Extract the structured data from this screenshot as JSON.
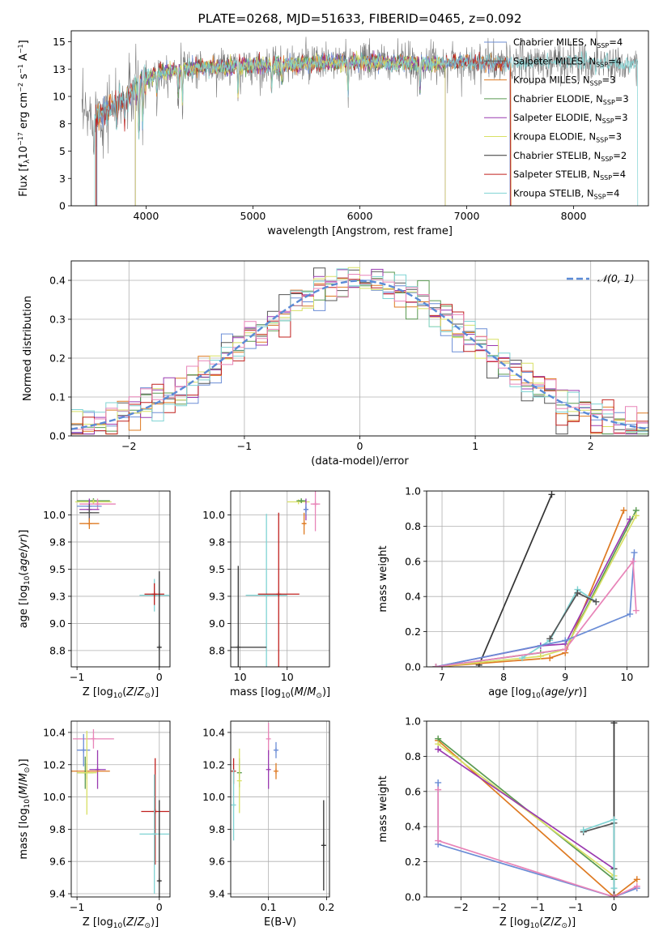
{
  "colors": {
    "chabrier_miles": "#6b8dd6",
    "salpeter_miles": "#555555",
    "kroupa_miles": "#de7a22",
    "chabrier_elodie": "#5a9a52",
    "salpeter_elodie": "#9a3ab0",
    "kroupa_elodie": "#d8e064",
    "chabrier_stelib": "#333333",
    "salpeter_stelib": "#c0201e",
    "kroupa_stelib": "#7fd3d3",
    "pink": "#e884b8",
    "normal_curve": "#5b8bd6"
  },
  "chart_data": [
    {
      "id": "spectrum",
      "type": "line",
      "title": "PLATE=0268, MJD=51633, FIBERID=0465, z=0.092",
      "xlabel": "wavelength [Angstrom, rest frame]",
      "ylabel_html": "Flux [f<tspan dy='3' font-size='9'>λ</tspan><tspan dy='-3'>10</tspan><tspan dy='-5' font-size='8'>−17</tspan><tspan dy='5'> erg cm</tspan><tspan dy='-5' font-size='8'>−2</tspan><tspan dy='5'> s</tspan><tspan dy='-5' font-size='8'>−1</tspan><tspan dy='5'> A</tspan><tspan dy='-5' font-size='8'>−1</tspan><tspan dy='5'>]</tspan>",
      "xlim": [
        3300,
        8700
      ],
      "ylim": [
        0,
        16
      ],
      "xticks": [
        4000,
        5000,
        6000,
        7000,
        8000
      ],
      "yticks": [
        0.0,
        2.5,
        5.0,
        7.5,
        10.0,
        12.5,
        15.0
      ],
      "legend_position": "right",
      "legend": [
        {
          "color_key": "chabrier_miles",
          "label": "Chabrier MILES, N",
          "sub": "SSP",
          "tail": "=4"
        },
        {
          "color_key": "salpeter_miles",
          "label": "Salpeter MILES, N",
          "sub": "SSP",
          "tail": "=4"
        },
        {
          "color_key": "kroupa_miles",
          "label": "Kroupa MILES, N",
          "sub": "SSP",
          "tail": "=3"
        },
        {
          "color_key": "chabrier_elodie",
          "label": "Chabrier ELODIE, N",
          "sub": "SSP",
          "tail": "=3"
        },
        {
          "color_key": "salpeter_elodie",
          "label": "Salpeter ELODIE, N",
          "sub": "SSP",
          "tail": "=3"
        },
        {
          "color_key": "kroupa_elodie",
          "label": "Kroupa ELODIE, N",
          "sub": "SSP",
          "tail": "=3"
        },
        {
          "color_key": "chabrier_stelib",
          "label": "Chabrier STELIB, N",
          "sub": "SSP",
          "tail": "=2"
        },
        {
          "color_key": "salpeter_stelib",
          "label": "Salpeter STELIB, N",
          "sub": "SSP",
          "tail": "=4"
        },
        {
          "color_key": "kroupa_stelib",
          "label": "Kroupa STELIB, N",
          "sub": "SSP",
          "tail": "=4"
        }
      ],
      "continuum": [
        [
          3400,
          8.0
        ],
        [
          3550,
          8.3
        ],
        [
          3700,
          9.2
        ],
        [
          3850,
          10.2
        ],
        [
          3950,
          11.2
        ],
        [
          4100,
          12.2
        ],
        [
          4400,
          12.6
        ],
        [
          5000,
          12.8
        ],
        [
          5500,
          13.0
        ],
        [
          6000,
          13.2
        ],
        [
          6500,
          13.0
        ],
        [
          7000,
          13.1
        ],
        [
          7500,
          13.0
        ],
        [
          8000,
          13.2
        ],
        [
          8500,
          13.0
        ]
      ],
      "absorptions": [
        [
          3727,
          3.0
        ],
        [
          3800,
          2.5
        ],
        [
          3934,
          6.0
        ],
        [
          3969,
          5.0
        ],
        [
          4101,
          2.5
        ],
        [
          4300,
          2.5
        ],
        [
          4340,
          3.5
        ],
        [
          4861,
          3.5
        ],
        [
          5175,
          3.0
        ],
        [
          5270,
          2.0
        ],
        [
          5890,
          4.0
        ],
        [
          6563,
          3.0
        ]
      ],
      "data_range": [
        3400,
        8600
      ],
      "models": [
        {
          "color_key": "salpeter_miles",
          "range": [
            3540,
            7410
          ]
        },
        {
          "color_key": "kroupa_miles",
          "range": [
            3535,
            7415
          ]
        },
        {
          "color_key": "chabrier_miles",
          "range": [
            3540,
            7405
          ]
        },
        {
          "color_key": "salpeter_stelib",
          "range": [
            3530,
            7410
          ]
        },
        {
          "color_key": "chabrier_elodie",
          "range": [
            3900,
            6800
          ]
        },
        {
          "color_key": "salpeter_elodie",
          "range": [
            3900,
            6800
          ]
        },
        {
          "color_key": "kroupa_elodie",
          "range": [
            3900,
            6800
          ]
        },
        {
          "color_key": "kroupa_stelib",
          "range": [
            3520,
            8600
          ]
        }
      ]
    },
    {
      "id": "residuals",
      "type": "line",
      "xlabel": "(data-model)/error",
      "ylabel": "Normed distribution",
      "xlim": [
        -2.5,
        2.5
      ],
      "ylim": [
        0,
        0.45
      ],
      "xticks": [
        -2,
        -1,
        0,
        1,
        2
      ],
      "yticks": [
        0.0,
        0.1,
        0.2,
        0.3,
        0.4
      ],
      "grid": true,
      "legend_position": "top-right",
      "legend_label": "𝒩(0, 1)",
      "bin_width": 0.1,
      "hist_color_keys": [
        "chabrier_miles",
        "salpeter_miles",
        "kroupa_miles",
        "chabrier_elodie",
        "salpeter_elodie",
        "kroupa_elodie",
        "salpeter_stelib",
        "kroupa_stelib",
        "pink"
      ]
    },
    {
      "id": "age_vs_z",
      "type": "scatter",
      "xlabel_html": "Z [log<tspan dy='3' font-size='9'>10</tspan><tspan dy='-3'>(</tspan><tspan font-style='italic'>Z</tspan>/<tspan font-style='italic'>Z</tspan><tspan dy='3' font-size='9'>⊙</tspan><tspan dy='-3'>)]</tspan>",
      "ylabel_html": "age  [log<tspan dy='3' font-size='9'>10</tspan><tspan dy='-3'>(</tspan><tspan font-style='italic'>age</tspan>/<tspan font-style='italic'>yr</tspan>)]",
      "xlim": [
        -1.07,
        0.13
      ],
      "ylim": [
        8.6,
        10.22
      ],
      "xticks": [
        -1,
        0
      ],
      "yticks": [
        8.75,
        9.0,
        9.25,
        9.5,
        9.75,
        10.0
      ],
      "grid": true,
      "points": [
        {
          "c": "chabrier_elodie",
          "x": -0.8,
          "y": 10.13,
          "xe": 0.2,
          "ye": 0.02
        },
        {
          "c": "kroupa_elodie",
          "x": -0.8,
          "y": 10.12,
          "xe": 0.22,
          "ye": 0.02
        },
        {
          "c": "pink",
          "x": -0.75,
          "y": 10.1,
          "xe": 0.22,
          "ye": 0.05
        },
        {
          "c": "chabrier_miles",
          "x": -0.85,
          "y": 10.08,
          "xe": 0.15,
          "ye": 0.06
        },
        {
          "c": "salpeter_elodie",
          "x": -0.85,
          "y": 10.05,
          "xe": 0.12,
          "ye": 0.1
        },
        {
          "c": "salpeter_miles",
          "x": -0.85,
          "y": 10.02,
          "xe": 0.12,
          "ye": 0.08
        },
        {
          "c": "kroupa_miles",
          "x": -0.85,
          "y": 9.92,
          "xe": 0.12,
          "ye": 0.05
        },
        {
          "c": "kroupa_stelib",
          "x": -0.06,
          "y": 9.26,
          "xe": 0.18,
          "ye": 0.15
        },
        {
          "c": "salpeter_stelib",
          "x": -0.06,
          "y": 9.27,
          "xe": 0.12,
          "ye": 0.1
        },
        {
          "c": "chabrier_stelib",
          "x": 0.0,
          "y": 8.78,
          "xe": 0.02,
          "ye": 0.7
        }
      ]
    },
    {
      "id": "age_vs_mass",
      "type": "scatter",
      "xlabel_html": "mass [log<tspan dy='3' font-size='9'>10</tspan><tspan dy='-3'>(</tspan><tspan font-style='italic'>M</tspan>/<tspan font-style='italic'>M</tspan><tspan dy='3' font-size='9'>⊙</tspan><tspan dy='-3'>)]</tspan>",
      "xlim": [
        9.4,
        10.45
      ],
      "ylim": [
        8.6,
        10.22
      ],
      "xticks": [
        9.5,
        10.0
      ],
      "yticks": [
        8.75,
        9.0,
        9.25,
        9.5,
        9.75,
        10.0
      ],
      "grid": true,
      "points": [
        {
          "c": "kroupa_elodie",
          "x": 10.12,
          "y": 10.12,
          "xe": 0.12,
          "ye": 0.02
        },
        {
          "c": "chabrier_elodie",
          "x": 10.15,
          "y": 10.13,
          "xe": 0.05,
          "ye": 0.02
        },
        {
          "c": "pink",
          "x": 10.3,
          "y": 10.1,
          "xe": 0.05,
          "ye": 0.25
        },
        {
          "c": "salpeter_elodie",
          "x": 10.2,
          "y": 10.05,
          "xe": 0.02,
          "ye": 0.1
        },
        {
          "c": "kroupa_miles",
          "x": 10.18,
          "y": 9.92,
          "xe": 0.02,
          "ye": 0.1
        },
        {
          "c": "chabrier_miles",
          "x": 10.2,
          "y": 10.05,
          "xe": 0.02,
          "ye": 0.05
        },
        {
          "c": "kroupa_stelib",
          "x": 9.78,
          "y": 9.26,
          "xe": 0.22,
          "ye": 0.75
        },
        {
          "c": "salpeter_stelib",
          "x": 9.91,
          "y": 9.27,
          "xe": 0.22,
          "ye": 0.75
        },
        {
          "c": "chabrier_stelib",
          "x": 9.48,
          "y": 8.78,
          "xe": 0.3,
          "ye": 0.75
        }
      ]
    },
    {
      "id": "weight_vs_age",
      "type": "line",
      "xlabel_html": "age  [log<tspan dy='3' font-size='9'>10</tspan><tspan dy='-3'>(</tspan><tspan font-style='italic'>age</tspan>/<tspan font-style='italic'>yr</tspan>)]",
      "ylabel": "mass weight",
      "xlim": [
        6.75,
        10.35
      ],
      "ylim": [
        0,
        1
      ],
      "xticks": [
        7,
        8,
        9,
        10
      ],
      "yticks": [
        0.0,
        0.2,
        0.4,
        0.6,
        0.8,
        1.0
      ],
      "grid": true,
      "series": [
        {
          "c": "chabrier_stelib",
          "x": [
            7.6,
            8.78
          ],
          "y": [
            0.01,
            0.98
          ]
        },
        {
          "c": "kroupa_miles",
          "x": [
            6.9,
            8.75,
            9.0,
            9.95
          ],
          "y": [
            0.0,
            0.05,
            0.08,
            0.89
          ]
        },
        {
          "c": "salpeter_elodie",
          "x": [
            6.9,
            8.6,
            9.0,
            10.05
          ],
          "y": [
            0.0,
            0.12,
            0.13,
            0.84
          ]
        },
        {
          "c": "chabrier_elodie",
          "x": [
            6.9,
            8.6,
            9.0,
            10.15
          ],
          "y": [
            0.0,
            0.08,
            0.1,
            0.89
          ]
        },
        {
          "c": "kroupa_elodie",
          "x": [
            6.9,
            8.6,
            9.0,
            10.15
          ],
          "y": [
            0.0,
            0.06,
            0.1,
            0.86
          ]
        },
        {
          "c": "kroupa_stelib",
          "x": [
            8.3,
            8.75,
            9.2,
            9.5
          ],
          "y": [
            0.05,
            0.15,
            0.44,
            0.37
          ]
        },
        {
          "c": "salpeter_miles",
          "x": [
            8.75,
            9.2,
            9.5
          ],
          "y": [
            0.16,
            0.42,
            0.37
          ]
        },
        {
          "c": "chabrier_miles",
          "x": [
            6.9,
            9.0,
            10.05,
            10.12
          ],
          "y": [
            0.0,
            0.15,
            0.3,
            0.65
          ]
        },
        {
          "c": "pink",
          "x": [
            6.9,
            9.0,
            10.1,
            10.15
          ],
          "y": [
            0.0,
            0.1,
            0.6,
            0.32
          ]
        }
      ]
    },
    {
      "id": "mass_vs_z",
      "type": "scatter",
      "xlabel_html": "Z [log<tspan dy='3' font-size='9'>10</tspan><tspan dy='-3'>(</tspan><tspan font-style='italic'>Z</tspan>/<tspan font-style='italic'>Z</tspan><tspan dy='3' font-size='9'>⊙</tspan><tspan dy='-3'>)]</tspan>",
      "ylabel_html": "mass [log<tspan dy='3' font-size='9'>10</tspan><tspan dy='-3'>(</tspan><tspan font-style='italic'>M</tspan>/<tspan font-style='italic'>M</tspan><tspan dy='3' font-size='9'>⊙</tspan><tspan dy='-3'>)]</tspan>",
      "xlim": [
        -1.07,
        0.13
      ],
      "ylim": [
        9.38,
        10.47
      ],
      "xticks": [
        -1,
        0
      ],
      "yticks": [
        9.4,
        9.6,
        9.8,
        10.0,
        10.2,
        10.4
      ],
      "grid": true,
      "points": [
        {
          "c": "pink",
          "x": -0.8,
          "y": 10.36,
          "xe": 0.25,
          "ye": 0.06
        },
        {
          "c": "chabrier_miles",
          "x": -0.92,
          "y": 10.29,
          "xe": 0.08,
          "ye": 0.1
        },
        {
          "c": "salpeter_elodie",
          "x": -0.75,
          "y": 10.17,
          "xe": 0.1,
          "ye": 0.12
        },
        {
          "c": "kroupa_miles",
          "x": -0.88,
          "y": 10.16,
          "xe": 0.28,
          "ye": 0.05
        },
        {
          "c": "chabrier_elodie",
          "x": -0.9,
          "y": 10.15,
          "xe": 0.1,
          "ye": 0.1
        },
        {
          "c": "kroupa_elodie",
          "x": -0.88,
          "y": 10.15,
          "xe": 0.12,
          "ye": 0.26
        },
        {
          "c": "salpeter_stelib",
          "x": -0.05,
          "y": 9.91,
          "xe": 0.17,
          "ye": 0.33
        },
        {
          "c": "kroupa_stelib",
          "x": -0.06,
          "y": 9.77,
          "xe": 0.18,
          "ye": 0.37
        },
        {
          "c": "chabrier_stelib",
          "x": 0.0,
          "y": 9.48,
          "xe": 0.02,
          "ye": 0.5
        }
      ]
    },
    {
      "id": "mass_vs_ebv",
      "type": "scatter",
      "xlabel": "E(B-V)",
      "xlim": [
        0.035,
        0.205
      ],
      "ylim": [
        9.38,
        10.47
      ],
      "xticks": [
        0.1,
        0.2
      ],
      "yticks": [
        9.4,
        9.6,
        9.8,
        10.0,
        10.2,
        10.4
      ],
      "grid": true,
      "points": [
        {
          "c": "pink",
          "x": 0.1,
          "y": 10.36,
          "xe": 0.0,
          "ye": 0.1
        },
        {
          "c": "chabrier_miles",
          "x": 0.113,
          "y": 10.29,
          "xe": 0.0,
          "ye": 0.05
        },
        {
          "c": "salpeter_elodie",
          "x": 0.1,
          "y": 10.17,
          "xe": 0.0,
          "ye": 0.12
        },
        {
          "c": "kroupa_miles",
          "x": 0.113,
          "y": 10.16,
          "xe": 0.0,
          "ye": 0.05
        },
        {
          "c": "chabrier_elodie",
          "x": 0.05,
          "y": 10.15,
          "xe": 0.0,
          "ye": 0.09
        },
        {
          "c": "kroupa_elodie",
          "x": 0.05,
          "y": 10.1,
          "xe": 0.0,
          "ye": 0.2
        },
        {
          "c": "salpeter_stelib",
          "x": 0.04,
          "y": 10.16,
          "xe": 0.0,
          "ye": 0.08
        },
        {
          "c": "kroupa_stelib",
          "x": 0.04,
          "y": 9.95,
          "xe": 0.0,
          "ye": 0.22
        },
        {
          "c": "chabrier_stelib",
          "x": 0.195,
          "y": 9.7,
          "xe": 0.0,
          "ye": 0.28
        }
      ]
    },
    {
      "id": "weight_vs_z",
      "type": "line",
      "xlabel_html": "Z [log<tspan dy='3' font-size='9'>10</tspan><tspan dy='-3'>(</tspan><tspan font-style='italic'>Z</tspan>/<tspan font-style='italic'>Z</tspan><tspan dy='3' font-size='9'>⊙</tspan><tspan dy='-3'>)]</tspan>",
      "ylabel": "mass weight",
      "xlim": [
        -2.45,
        0.45
      ],
      "ylim": [
        0,
        1
      ],
      "xticks": [
        -2.0,
        -1.5,
        -1.0,
        -0.5,
        0.0
      ],
      "yticks": [
        0.0,
        0.2,
        0.4,
        0.6,
        0.8,
        1.0
      ],
      "grid": true,
      "series": [
        {
          "c": "chabrier_stelib",
          "x": [
            0.0,
            0.0
          ],
          "y": [
            0.01,
            0.99
          ]
        },
        {
          "c": "kroupa_miles",
          "x": [
            -2.3,
            0.0,
            0.3
          ],
          "y": [
            0.89,
            0.0,
            0.1
          ]
        },
        {
          "c": "chabrier_elodie",
          "x": [
            -2.3,
            0.0
          ],
          "y": [
            0.9,
            0.1
          ]
        },
        {
          "c": "kroupa_elodie",
          "x": [
            -2.3,
            0.0
          ],
          "y": [
            0.87,
            0.12
          ]
        },
        {
          "c": "salpeter_elodie",
          "x": [
            -2.3,
            0.0
          ],
          "y": [
            0.84,
            0.16
          ]
        },
        {
          "c": "chabrier_miles",
          "x": [
            -2.3,
            -2.3,
            0.0,
            0.3
          ],
          "y": [
            0.65,
            0.3,
            0.0,
            0.05
          ]
        },
        {
          "c": "pink",
          "x": [
            -2.3,
            -2.3,
            0.0,
            0.3
          ],
          "y": [
            0.61,
            0.32,
            0.0,
            0.06
          ]
        },
        {
          "c": "salpeter_miles",
          "x": [
            -0.4,
            0.0,
            0.0
          ],
          "y": [
            0.37,
            0.42,
            0.16
          ]
        },
        {
          "c": "kroupa_stelib",
          "x": [
            -0.4,
            0.0,
            0.0
          ],
          "y": [
            0.38,
            0.44,
            0.05
          ]
        }
      ]
    }
  ]
}
